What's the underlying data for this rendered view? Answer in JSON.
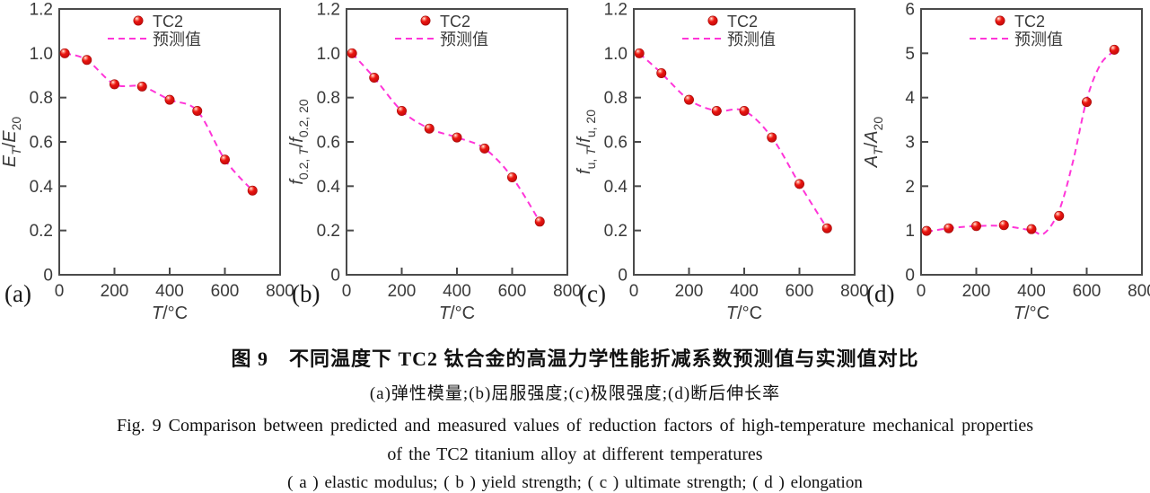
{
  "figure": {
    "caption_cn_title": "图 9　不同温度下 TC2 钛合金的高温力学性能折减系数预测值与实测值对比",
    "caption_cn_sub": "(a)弹性模量;(b)屈服强度;(c)极限强度;(d)断后伸长率",
    "caption_en_line1": "Fig. 9   Comparison between predicted and measured values of reduction factors of high-temperature mechanical properties",
    "caption_en_line2": "of the TC2 titanium alloy at different temperatures",
    "caption_en_line3": "( a )  elastic modulus; ( b )  yield strength; ( c )  ultimate strength; ( d )  elongation"
  },
  "legend": {
    "marker_label": "TC2",
    "line_label": "预测值"
  },
  "colors": {
    "marker_red": "#e31212",
    "marker_edge": "#a50b0b",
    "prediction_magenta": "#ff35d8",
    "axis": "#4a4a4a",
    "tick_text": "#3a3a3a"
  },
  "chart_data": [
    {
      "type": "scatter",
      "panel_label": "(a)",
      "series": [
        {
          "name": "TC2",
          "x": [
            20,
            100,
            200,
            300,
            400,
            500,
            600,
            700
          ],
          "values": [
            1.0,
            0.97,
            0.86,
            0.85,
            0.79,
            0.74,
            0.52,
            0.38
          ]
        },
        {
          "name": "预测值",
          "type": "dashed-line",
          "points": [
            [
              20,
              1.0
            ],
            [
              100,
              0.97
            ],
            [
              200,
              0.86
            ],
            [
              300,
              0.85
            ],
            [
              400,
              0.79
            ],
            [
              500,
              0.74
            ],
            [
              600,
              0.52
            ],
            [
              700,
              0.38
            ]
          ]
        }
      ],
      "xlabel": [
        {
          "t": "T",
          "i": true
        },
        {
          "t": "/°C"
        }
      ],
      "ylabel": [
        {
          "t": "E",
          "i": true
        },
        {
          "t": "T",
          "sub": true,
          "i": true
        },
        {
          "t": "/"
        },
        {
          "t": "E",
          "i": true
        },
        {
          "t": "20",
          "sub": true
        }
      ],
      "xlim": [
        0,
        800
      ],
      "ylim": [
        0,
        1.2
      ],
      "xticks": {
        "values": [
          0,
          200,
          400,
          600,
          800
        ],
        "labels": [
          "0",
          "200",
          "400",
          "600",
          "800"
        ]
      },
      "yticks": {
        "values": [
          0,
          0.2,
          0.4,
          0.6,
          0.8,
          1.0,
          1.2
        ],
        "labels": [
          "0",
          "0.2",
          "0.4",
          "0.6",
          "0.8",
          "1.0",
          "1.2"
        ]
      }
    },
    {
      "type": "scatter",
      "panel_label": "(b)",
      "series": [
        {
          "name": "TC2",
          "x": [
            20,
            100,
            200,
            300,
            400,
            500,
            600,
            700
          ],
          "values": [
            1.0,
            0.89,
            0.74,
            0.66,
            0.62,
            0.57,
            0.44,
            0.24
          ]
        },
        {
          "name": "预测值",
          "type": "dashed-line",
          "points": [
            [
              20,
              1.0
            ],
            [
              100,
              0.89
            ],
            [
              200,
              0.74
            ],
            [
              300,
              0.66
            ],
            [
              400,
              0.62
            ],
            [
              500,
              0.57
            ],
            [
              600,
              0.44
            ],
            [
              700,
              0.24
            ]
          ]
        }
      ],
      "xlabel": [
        {
          "t": "T",
          "i": true
        },
        {
          "t": "/°C"
        }
      ],
      "ylabel": [
        {
          "t": "f",
          "i": true
        },
        {
          "t": "0.2, ",
          "sub": true
        },
        {
          "t": "T",
          "sub": true,
          "i": true
        },
        {
          "t": "/"
        },
        {
          "t": "f",
          "i": true
        },
        {
          "t": "0.2, 20",
          "sub": true
        }
      ],
      "xlim": [
        0,
        800
      ],
      "ylim": [
        0,
        1.2
      ],
      "xticks": {
        "values": [
          0,
          200,
          400,
          600,
          800
        ],
        "labels": [
          "0",
          "200",
          "400",
          "600",
          "800"
        ]
      },
      "yticks": {
        "values": [
          0,
          0.2,
          0.4,
          0.6,
          0.8,
          1.0,
          1.2
        ],
        "labels": [
          "0",
          "0.2",
          "0.4",
          "0.6",
          "0.8",
          "1.0",
          "1.2"
        ]
      }
    },
    {
      "type": "scatter",
      "panel_label": "(c)",
      "series": [
        {
          "name": "TC2",
          "x": [
            20,
            100,
            200,
            300,
            400,
            500,
            600,
            700
          ],
          "values": [
            1.0,
            0.91,
            0.79,
            0.74,
            0.74,
            0.62,
            0.41,
            0.21
          ]
        },
        {
          "name": "预测值",
          "type": "dashed-line",
          "points": [
            [
              20,
              1.0
            ],
            [
              100,
              0.91
            ],
            [
              200,
              0.79
            ],
            [
              300,
              0.74
            ],
            [
              400,
              0.74
            ],
            [
              500,
              0.62
            ],
            [
              600,
              0.41
            ],
            [
              700,
              0.21
            ]
          ]
        }
      ],
      "xlabel": [
        {
          "t": "T",
          "i": true
        },
        {
          "t": "/°C"
        }
      ],
      "ylabel": [
        {
          "t": "f",
          "i": true
        },
        {
          "t": "u, ",
          "sub": true
        },
        {
          "t": "T",
          "sub": true,
          "i": true
        },
        {
          "t": "/"
        },
        {
          "t": "f",
          "i": true
        },
        {
          "t": "u, 20",
          "sub": true
        }
      ],
      "xlim": [
        0,
        800
      ],
      "ylim": [
        0,
        1.2
      ],
      "xticks": {
        "values": [
          0,
          200,
          400,
          600,
          800
        ],
        "labels": [
          "0",
          "200",
          "400",
          "600",
          "800"
        ]
      },
      "yticks": {
        "values": [
          0,
          0.2,
          0.4,
          0.6,
          0.8,
          1.0,
          1.2
        ],
        "labels": [
          "0",
          "0.2",
          "0.4",
          "0.6",
          "0.8",
          "1.0",
          "1.2"
        ]
      }
    },
    {
      "type": "scatter",
      "panel_label": "(d)",
      "series": [
        {
          "name": "TC2",
          "x": [
            20,
            100,
            200,
            300,
            400,
            500,
            600,
            700
          ],
          "values": [
            0.99,
            1.05,
            1.1,
            1.12,
            1.03,
            1.33,
            3.9,
            5.08
          ]
        },
        {
          "name": "预测值",
          "type": "dashed-line",
          "points": [
            [
              20,
              0.97
            ],
            [
              100,
              1.05
            ],
            [
              200,
              1.1
            ],
            [
              300,
              1.1
            ],
            [
              400,
              1.0
            ],
            [
              445,
              0.93
            ],
            [
              500,
              1.45
            ],
            [
              550,
              2.55
            ],
            [
              600,
              3.95
            ],
            [
              650,
              4.75
            ],
            [
              700,
              5.05
            ]
          ]
        }
      ],
      "xlabel": [
        {
          "t": "T",
          "i": true
        },
        {
          "t": "/°C"
        }
      ],
      "ylabel": [
        {
          "t": "A",
          "i": true
        },
        {
          "t": "T",
          "sub": true,
          "i": true
        },
        {
          "t": "/"
        },
        {
          "t": "A",
          "i": true
        },
        {
          "t": "20",
          "sub": true
        }
      ],
      "xlim": [
        0,
        800
      ],
      "ylim": [
        0,
        6
      ],
      "xticks": {
        "values": [
          0,
          200,
          400,
          600,
          800
        ],
        "labels": [
          "0",
          "200",
          "400",
          "600",
          "800"
        ]
      },
      "yticks": {
        "values": [
          0,
          1,
          2,
          3,
          4,
          5,
          6
        ],
        "labels": [
          "0",
          "1",
          "2",
          "3",
          "4",
          "5",
          "6"
        ]
      }
    }
  ]
}
